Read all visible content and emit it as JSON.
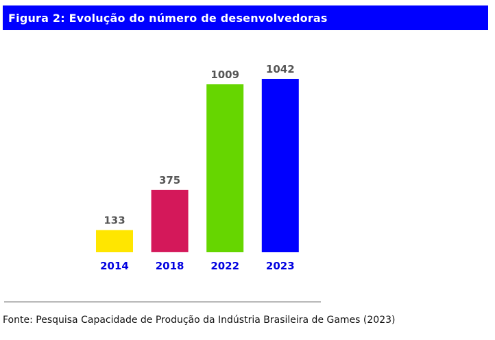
{
  "header": {
    "title": "Figura 2: Evolução do número de desenvolvedoras"
  },
  "footer": {
    "source": "Fonte: Pesquisa Capacidade de Produção da Indústria Brasileira de Games (2023)"
  },
  "chart_data": {
    "type": "bar",
    "categories": [
      "2014",
      "2018",
      "2022",
      "2023"
    ],
    "values": [
      133,
      375,
      1009,
      1042
    ],
    "colors": [
      "#ffe600",
      "#d4185a",
      "#66d600",
      "#0000ff"
    ],
    "category_label_color": "#0000e0",
    "value_label_color": "#555555",
    "title": "",
    "xlabel": "",
    "ylabel": "",
    "grid": false,
    "legend": "none"
  }
}
